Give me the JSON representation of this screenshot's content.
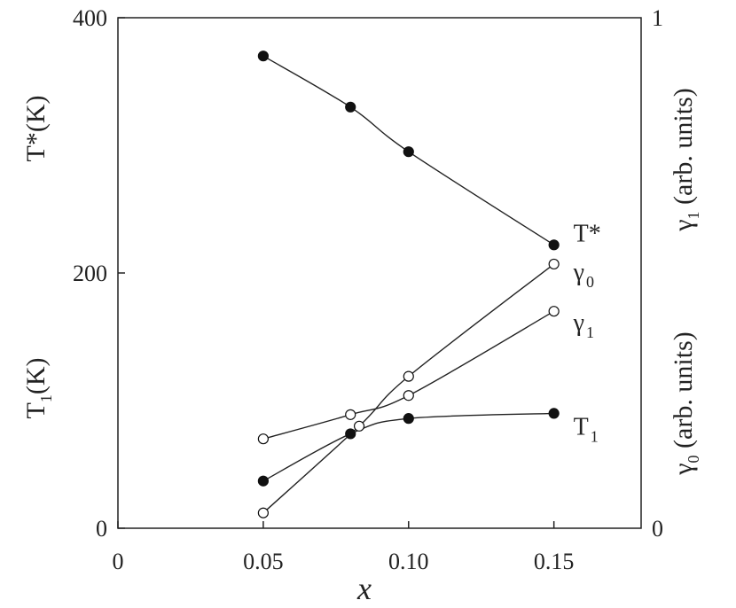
{
  "chart_data": {
    "type": "line",
    "x_axis": {
      "label": "x",
      "range": [
        0,
        0.18
      ],
      "ticks": [
        0,
        0.05,
        0.1,
        0.15
      ],
      "tick_labels": [
        "0",
        "0.05",
        "0.10",
        "0.15"
      ]
    },
    "y_left": {
      "range": [
        0,
        400
      ],
      "ticks": [
        0,
        200,
        400
      ],
      "tick_labels": [
        "0",
        "200",
        "400"
      ],
      "label_upper": "T*(K)",
      "label_lower": {
        "main": "T",
        "sub": "1",
        "rest": "(K)"
      }
    },
    "y_right": {
      "range": [
        0,
        1
      ],
      "tick_labels": [
        "0",
        "1"
      ],
      "label_upper": {
        "main": "γ",
        "sub": "1",
        "rest": " (arb. units)"
      },
      "label_lower": {
        "main": "γ",
        "sub": "0",
        "rest": " (arb. units)"
      }
    },
    "series": [
      {
        "id": "tstar",
        "label": {
          "main": "T*",
          "sub": ""
        },
        "marker": "filled",
        "points": [
          [
            0.05,
            370
          ],
          [
            0.08,
            330
          ],
          [
            0.1,
            295
          ],
          [
            0.15,
            222
          ]
        ]
      },
      {
        "id": "gamma0",
        "label": {
          "main": "γ",
          "sub": "0"
        },
        "marker": "open",
        "points": [
          [
            0.05,
            12
          ],
          [
            0.083,
            80
          ],
          [
            0.1,
            119
          ],
          [
            0.15,
            207
          ]
        ]
      },
      {
        "id": "gamma1",
        "label": {
          "main": "γ",
          "sub": "1"
        },
        "marker": "open",
        "points": [
          [
            0.05,
            70
          ],
          [
            0.08,
            89
          ],
          [
            0.1,
            104
          ],
          [
            0.15,
            170
          ]
        ]
      },
      {
        "id": "t1",
        "label": {
          "main": "T",
          "sub": "1"
        },
        "marker": "filled",
        "points": [
          [
            0.05,
            37
          ],
          [
            0.08,
            74
          ],
          [
            0.1,
            86
          ],
          [
            0.15,
            90
          ]
        ]
      }
    ],
    "grid": false,
    "legend": "none"
  }
}
